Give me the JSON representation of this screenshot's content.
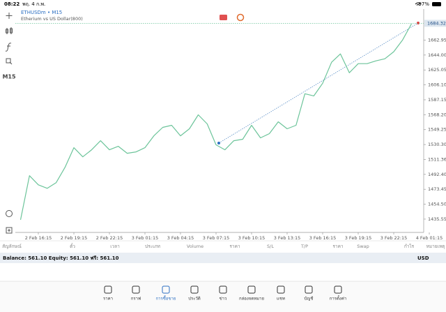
{
  "status_bar": {
    "time": "08:22",
    "date": "พฤ. 4 ก.พ.",
    "battery": "97%"
  },
  "toolbar": {
    "timeframe": "M15"
  },
  "chart_data": {
    "type": "line",
    "title": "ETHUSDm • M15",
    "subtitle": "Etherium vs US Dollar(800)",
    "color": "#6cc49a",
    "categories": [
      null,
      null,
      "2 Feb 16:15",
      null,
      null,
      null,
      "2 Feb 19:15",
      null,
      null,
      null,
      "2 Feb 22:15",
      null,
      null,
      null,
      "3 Feb 01:15",
      null,
      null,
      null,
      "3 Feb 04:15",
      null,
      null,
      null,
      "3 Feb 07:15",
      null,
      null,
      null,
      "3 Feb 10:15",
      null,
      null,
      null,
      "3 Feb 13:15",
      null,
      null,
      null,
      "3 Feb 16:15",
      null,
      null,
      null,
      "3 Feb 19:15",
      null,
      null,
      null,
      "3 Feb 22:15",
      null,
      null,
      null,
      "4 Feb 01:15"
    ],
    "values": [
      1434.7,
      1490.7,
      1479.1,
      1474.7,
      1481.8,
      1501.4,
      1526.3,
      1514.7,
      1523.6,
      1535.2,
      1523.6,
      1528.1,
      1519.2,
      1521.0,
      1526.3,
      1541.4,
      1552.1,
      1554.8,
      1541.4,
      1550.3,
      1568.1,
      1556.5,
      1529.9,
      1523.6,
      1535.2,
      1537.0,
      1554.8,
      1538.8,
      1544.1,
      1559.2,
      1550.3,
      1554.8,
      1594.8,
      1592.1,
      1608.1,
      1634.8,
      1645.5,
      1621.5,
      1633.1,
      1633.1,
      1636.6,
      1639.3,
      1648.2,
      1663.3,
      1683.8,
      null,
      null
    ],
    "ylim": [
      1418.65,
      1702.4
    ],
    "yticks": [
      1662.95,
      {
        "value": 1644,
        "label": "1644.00"
      },
      1625.05,
      {
        "value": 1606.1,
        "label": "1606.10"
      },
      1587.15,
      {
        "value": 1568.2,
        "label": "1568.20"
      },
      1549.25,
      {
        "value": 1530.3,
        "label": "1530.30"
      },
      1511.36,
      {
        "value": 1492.4,
        "label": "1492.40"
      },
      1473.45,
      {
        "value": 1454.5,
        "label": "1454.50"
      },
      1435.55
    ],
    "current_price": 1684.32
  },
  "table": {
    "columns": [
      "สัญลักษณ์",
      "ตั๋ว",
      "เวลา",
      "ประเภท",
      "Volume",
      "ราคา",
      "S/L",
      "T/P",
      "ราคา",
      "Swap",
      "กำไร",
      "หมายเหตุ"
    ]
  },
  "account": {
    "summary": "Balance: 561.10 Equity: 561.10 ฟรี: 561.10",
    "currency": "USD"
  },
  "tabs": [
    "ราคา",
    "กราฟ",
    "การซื้อขาย",
    "ประวัติ",
    "ข่าว",
    "กล่องจดหมาย",
    "แชท",
    "บัญชี",
    "การตั้งค่า"
  ]
}
